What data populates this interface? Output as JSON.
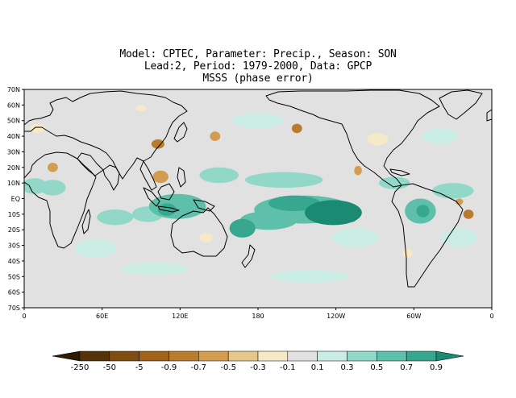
{
  "title": {
    "line1": "Model: CPTEC, Parameter: Precip., Season: SON",
    "line2": "Lead:2, Period: 1979-2000, Data: GPCP",
    "line3": "MSSS (phase error)"
  },
  "map": {
    "projection": "cylindrical-equidistant",
    "lon_start": 0,
    "lon_end": 360,
    "lat_min": -70,
    "lat_max": 70,
    "background_color": "#e1e1e1",
    "lat_ticks": [
      {
        "value": 70,
        "label": "70N"
      },
      {
        "value": 60,
        "label": "60N"
      },
      {
        "value": 50,
        "label": "50N"
      },
      {
        "value": 40,
        "label": "40N"
      },
      {
        "value": 30,
        "label": "30N"
      },
      {
        "value": 20,
        "label": "20N"
      },
      {
        "value": 10,
        "label": "10N"
      },
      {
        "value": 0,
        "label": "EQ"
      },
      {
        "value": -10,
        "label": "10S"
      },
      {
        "value": -20,
        "label": "20S"
      },
      {
        "value": -30,
        "label": "30S"
      },
      {
        "value": -40,
        "label": "40S"
      },
      {
        "value": -50,
        "label": "50S"
      },
      {
        "value": -60,
        "label": "60S"
      },
      {
        "value": -70,
        "label": "70S"
      }
    ],
    "lon_ticks": [
      {
        "value": 0,
        "label": "0"
      },
      {
        "value": 60,
        "label": "60E"
      },
      {
        "value": 120,
        "label": "120E"
      },
      {
        "value": 180,
        "label": "180"
      },
      {
        "value": 240,
        "label": "120W"
      },
      {
        "value": 300,
        "label": "60W"
      },
      {
        "value": 360,
        "label": "0"
      }
    ],
    "regions": [
      {
        "name": "central-pacific-max",
        "lon": 238,
        "lat": -9,
        "rx": 22,
        "ry": 8,
        "level": 5
      },
      {
        "name": "central-pacific-band",
        "lon": 215,
        "lat": -7,
        "rx": 38,
        "ry": 9,
        "level": 3
      },
      {
        "name": "equatorial-pacific-core",
        "lon": 208,
        "lat": -3,
        "rx": 20,
        "ry": 5,
        "level": 4
      },
      {
        "name": "spcz",
        "lon": 188,
        "lat": -14,
        "rx": 22,
        "ry": 6,
        "level": 3
      },
      {
        "name": "coral-sea",
        "lon": 168,
        "lat": -19,
        "rx": 10,
        "ry": 6,
        "level": 4
      },
      {
        "name": "maritime-continent",
        "lon": 118,
        "lat": -5,
        "rx": 22,
        "ry": 8,
        "level": 3
      },
      {
        "name": "indonesia-core",
        "lon": 110,
        "lat": -7,
        "rx": 7,
        "ry": 4,
        "level": 4
      },
      {
        "name": "east-indian-ocean",
        "lon": 95,
        "lat": -10,
        "rx": 12,
        "ry": 5,
        "level": 2
      },
      {
        "name": "indian-ocean-south",
        "lon": 70,
        "lat": -12,
        "rx": 14,
        "ry": 5,
        "level": 2
      },
      {
        "name": "west-africa",
        "lon": 8,
        "lat": 8,
        "rx": 10,
        "ry": 5,
        "level": 2
      },
      {
        "name": "east-africa",
        "lon": 22,
        "lat": 7,
        "rx": 10,
        "ry": 5,
        "level": 2
      },
      {
        "name": "amazon",
        "lon": 305,
        "lat": -8,
        "rx": 12,
        "ry": 8,
        "level": 3
      },
      {
        "name": "amazon-core",
        "lon": 307,
        "lat": -8,
        "rx": 5,
        "ry": 4,
        "level": 4
      },
      {
        "name": "tropical-atlantic",
        "lon": 330,
        "lat": 5,
        "rx": 16,
        "ry": 5,
        "level": 2
      },
      {
        "name": "caribbean",
        "lon": 285,
        "lat": 10,
        "rx": 12,
        "ry": 4,
        "level": 2
      },
      {
        "name": "north-pacific-band",
        "lon": 200,
        "lat": 12,
        "rx": 30,
        "ry": 5,
        "level": 2
      },
      {
        "name": "west-pacific-north",
        "lon": 150,
        "lat": 15,
        "rx": 15,
        "ry": 5,
        "level": 2
      },
      {
        "name": "south-atlantic",
        "lon": 335,
        "lat": -25,
        "rx": 14,
        "ry": 6,
        "level": 1
      },
      {
        "name": "south-pacific-east",
        "lon": 255,
        "lat": -25,
        "rx": 18,
        "ry": 6,
        "level": 1
      },
      {
        "name": "south-indian",
        "lon": 55,
        "lat": -32,
        "rx": 16,
        "ry": 6,
        "level": 1
      },
      {
        "name": "south-ocean-1",
        "lon": 100,
        "lat": -45,
        "rx": 25,
        "ry": 4,
        "level": 1
      },
      {
        "name": "south-ocean-2",
        "lon": 220,
        "lat": -50,
        "rx": 30,
        "ry": 4,
        "level": 1
      },
      {
        "name": "north-atlantic",
        "lon": 320,
        "lat": 40,
        "rx": 14,
        "ry": 5,
        "level": 1
      },
      {
        "name": "north-pacific-1",
        "lon": 180,
        "lat": 50,
        "rx": 20,
        "ry": 5,
        "level": 1
      },
      {
        "name": "central-pacific-neg",
        "lon": 221,
        "lat": -12,
        "rx": 3,
        "ry": 2,
        "level": -3
      },
      {
        "name": "east-pacific-neg",
        "lon": 253,
        "lat": -12,
        "rx": 3,
        "ry": 3,
        "level": -3
      },
      {
        "name": "mexico-neg",
        "lon": 257,
        "lat": 18,
        "rx": 3,
        "ry": 3,
        "level": -2
      },
      {
        "name": "north-pacific-neg",
        "lon": 210,
        "lat": 45,
        "rx": 4,
        "ry": 3,
        "level": -3
      },
      {
        "name": "japan-neg",
        "lon": 147,
        "lat": 40,
        "rx": 4,
        "ry": 3,
        "level": -2
      },
      {
        "name": "china-neg",
        "lon": 103,
        "lat": 35,
        "rx": 5,
        "ry": 3,
        "level": -3
      },
      {
        "name": "se-asia-neg",
        "lon": 105,
        "lat": 14,
        "rx": 6,
        "ry": 4,
        "level": -2
      },
      {
        "name": "atlantic-east-neg",
        "lon": 342,
        "lat": -10,
        "rx": 4,
        "ry": 3,
        "level": -3
      },
      {
        "name": "atlantic-neg-2",
        "lon": 335,
        "lat": -2,
        "rx": 3,
        "ry": 2,
        "level": -2
      },
      {
        "name": "africa-neg",
        "lon": 22,
        "lat": 20,
        "rx": 4,
        "ry": 3,
        "level": -2
      },
      {
        "name": "australia-neg",
        "lon": 140,
        "lat": -25,
        "rx": 5,
        "ry": 3,
        "level": -1
      },
      {
        "name": "nw-pacific-neg",
        "lon": 90,
        "lat": 58,
        "rx": 4,
        "ry": 2,
        "level": -1
      },
      {
        "name": "n-america-neg",
        "lon": 272,
        "lat": 38,
        "rx": 8,
        "ry": 4,
        "level": -1
      },
      {
        "name": "s-america-neg",
        "lon": 295,
        "lat": -35,
        "rx": 4,
        "ry": 3,
        "level": -1
      },
      {
        "name": "europe-neg",
        "lon": 10,
        "lat": 45,
        "rx": 6,
        "ry": 3,
        "level": -1
      }
    ]
  },
  "colorbar": {
    "labels": [
      "-250",
      "-50",
      "-5",
      "-0.9",
      "-0.7",
      "-0.5",
      "-0.3",
      "-0.1",
      "0.1",
      "0.3",
      "0.5",
      "0.7",
      "0.9"
    ],
    "colors": [
      "#2d1a04",
      "#55330a",
      "#7e4d10",
      "#a06319",
      "#b87d2c",
      "#d29d51",
      "#e6c78a",
      "#f6e9c6",
      "#e1e1e1",
      "#c9ece3",
      "#92d8c8",
      "#5ebfaa",
      "#37a88f",
      "#1a8a72"
    ],
    "level_colors": {
      "-3": "#b87d2c",
      "-2": "#d29d51",
      "-1": "#f6e9c6",
      "1": "#c9ece3",
      "2": "#92d8c8",
      "3": "#5ebfaa",
      "4": "#37a88f",
      "5": "#1a8a72"
    }
  }
}
